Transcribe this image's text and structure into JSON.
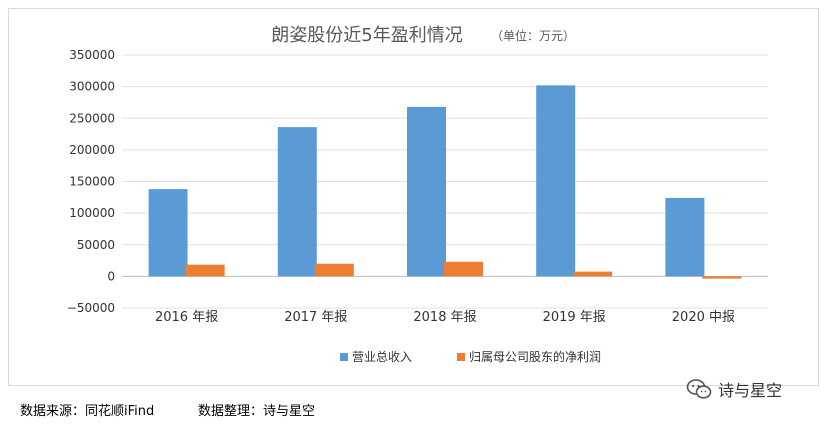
{
  "chart_data": {
    "type": "bar",
    "title": "朗姿股份近5年盈利情况",
    "subtitle": "（单位：万元）",
    "categories": [
      "2016 年报",
      "2017 年报",
      "2018 年报",
      "2019 年报",
      "2020 中报"
    ],
    "series": [
      {
        "name": "营业总收入",
        "color": "#5b9bd5",
        "values": [
          138000,
          236000,
          268000,
          302000,
          124000
        ]
      },
      {
        "name": "归属母公司股东的净利润",
        "color": "#ed7d31",
        "values": [
          18500,
          20000,
          23000,
          7500,
          -3500
        ]
      }
    ],
    "yticks": [
      350000,
      300000,
      250000,
      200000,
      150000,
      100000,
      50000,
      0,
      -50000
    ],
    "ytick_labels": [
      "350000",
      "300000",
      "250000",
      "200000",
      "150000",
      "100000",
      "50000",
      "0",
      "−50000"
    ],
    "ylim": [
      -50000,
      350000
    ],
    "grid": true,
    "legend_position": "bottom"
  },
  "footer": {
    "source": "数据来源：同花顺iFind",
    "compiler": "数据整理：诗与星空"
  },
  "watermark": {
    "text": "诗与星空",
    "icon": "wechat-icon"
  }
}
